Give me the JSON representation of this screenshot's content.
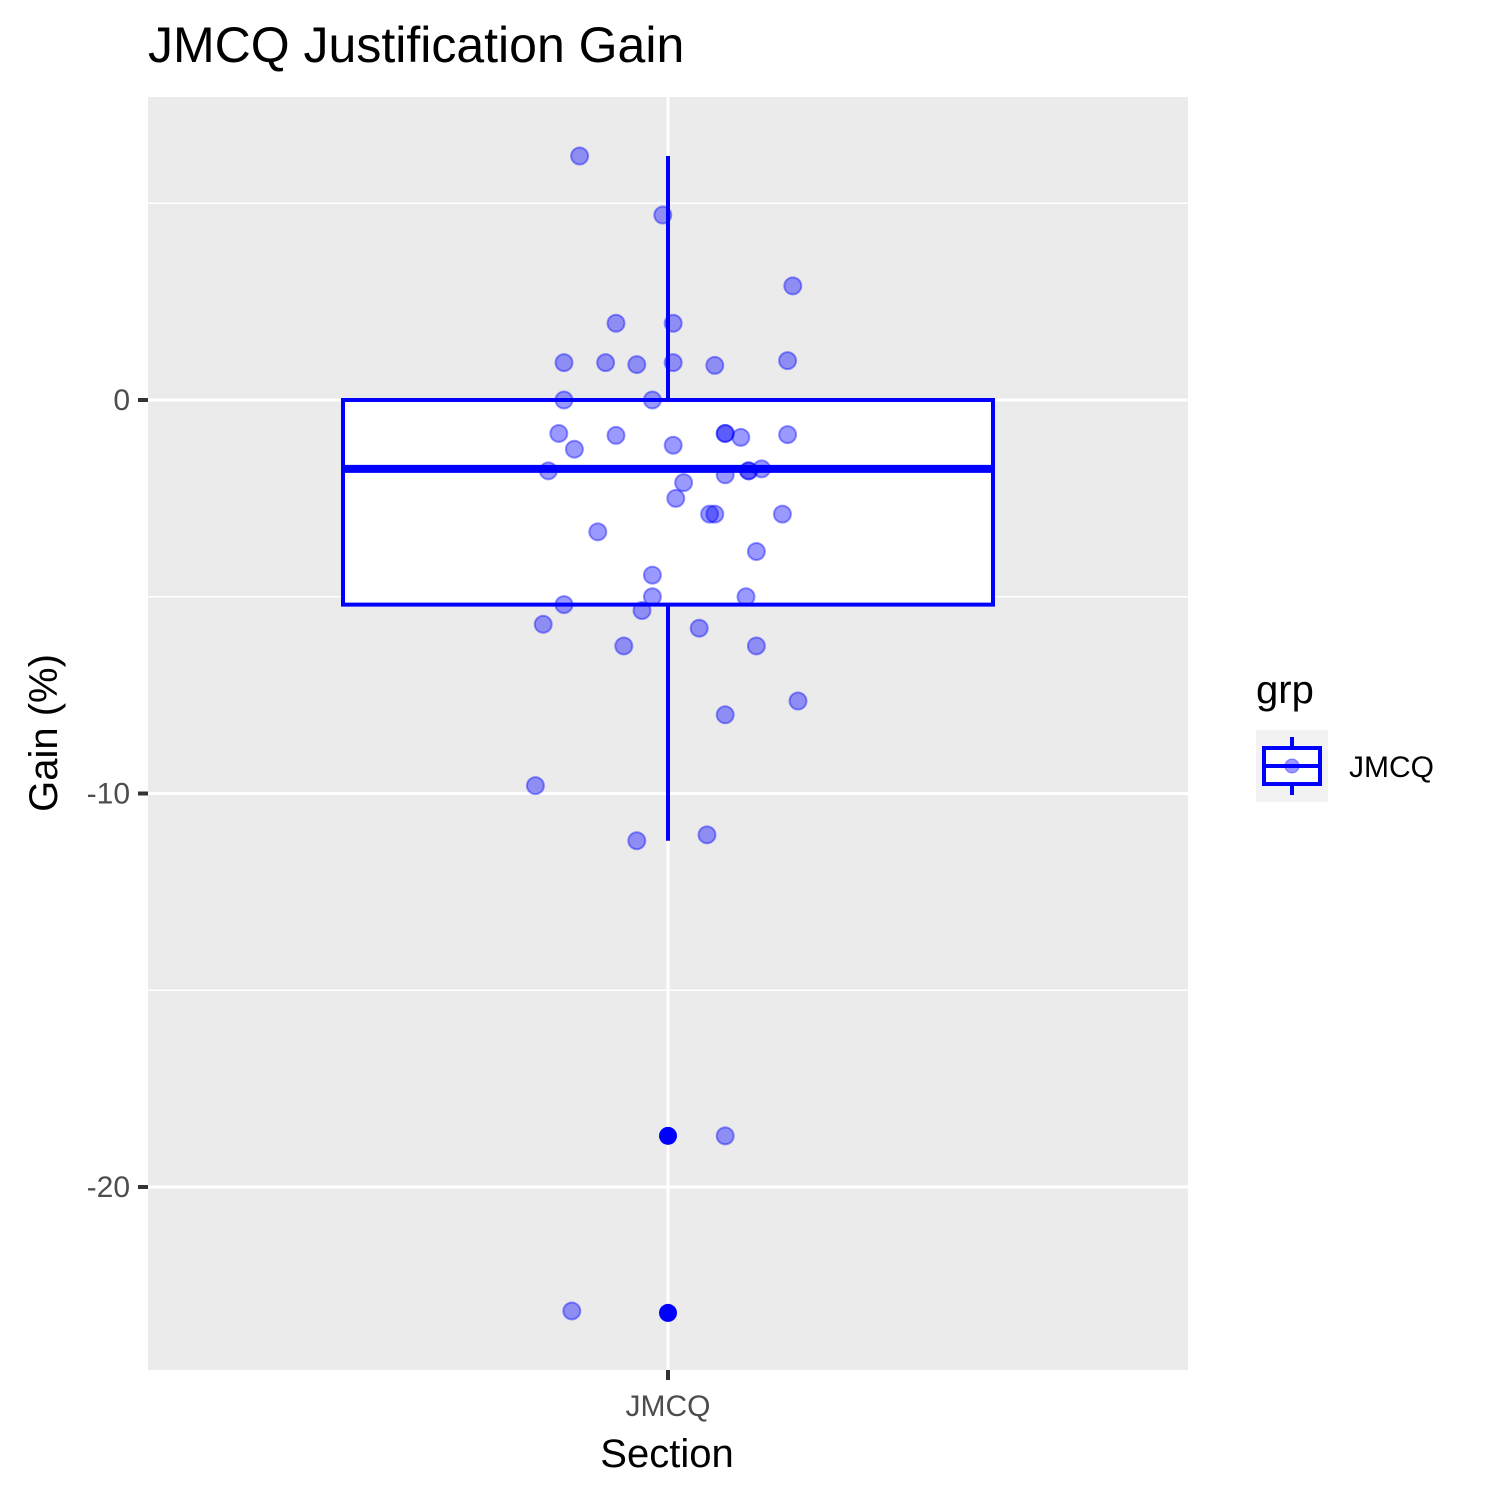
{
  "chart_data": {
    "type": "box",
    "title": "JMCQ Justification Gain",
    "xlabel": "Section",
    "ylabel": "Gain (%)",
    "categories": [
      "JMCQ"
    ],
    "ylim": [
      -24.3,
      8.1
    ],
    "yticks": [
      0,
      -10,
      -20
    ],
    "ytick_labels": [
      "0",
      "-10",
      "-20"
    ],
    "grid": true,
    "box": {
      "category": "JMCQ",
      "q1": -5.2,
      "median": -1.75,
      "q3": 0,
      "whisker_low": -11.2,
      "whisker_high": 6.2,
      "outliers": [
        -18.7,
        -23.2
      ]
    },
    "jitter_points": [
      {
        "x": -0.17,
        "y": 6.2
      },
      {
        "x": -0.01,
        "y": 4.7
      },
      {
        "x": 0.24,
        "y": 2.9
      },
      {
        "x": -0.1,
        "y": 1.95
      },
      {
        "x": 0.01,
        "y": 1.95
      },
      {
        "x": -0.2,
        "y": 0.95
      },
      {
        "x": -0.12,
        "y": 0.95
      },
      {
        "x": -0.06,
        "y": 0.9
      },
      {
        "x": 0.01,
        "y": 0.95
      },
      {
        "x": 0.09,
        "y": 0.88
      },
      {
        "x": 0.23,
        "y": 1.0
      },
      {
        "x": -0.2,
        "y": 0.0
      },
      {
        "x": -0.03,
        "y": 0.0
      },
      {
        "x": -0.21,
        "y": -0.85
      },
      {
        "x": -0.1,
        "y": -0.9
      },
      {
        "x": -0.18,
        "y": -1.25
      },
      {
        "x": 0.01,
        "y": -1.15
      },
      {
        "x": 0.11,
        "y": -0.85
      },
      {
        "x": 0.11,
        "y": -0.85
      },
      {
        "x": 0.14,
        "y": -0.95
      },
      {
        "x": 0.23,
        "y": -0.88
      },
      {
        "x": -0.23,
        "y": -1.8
      },
      {
        "x": 0.11,
        "y": -1.9
      },
      {
        "x": 0.155,
        "y": -1.8
      },
      {
        "x": 0.155,
        "y": -1.8
      },
      {
        "x": 0.18,
        "y": -1.75
      },
      {
        "x": 0.03,
        "y": -2.1
      },
      {
        "x": 0.015,
        "y": -2.5
      },
      {
        "x": 0.08,
        "y": -2.9
      },
      {
        "x": 0.09,
        "y": -2.9
      },
      {
        "x": 0.22,
        "y": -2.9
      },
      {
        "x": -0.135,
        "y": -3.35
      },
      {
        "x": 0.17,
        "y": -3.85
      },
      {
        "x": -0.03,
        "y": -4.45
      },
      {
        "x": -0.03,
        "y": -5.0
      },
      {
        "x": 0.15,
        "y": -5.0
      },
      {
        "x": -0.2,
        "y": -5.2
      },
      {
        "x": -0.05,
        "y": -5.35
      },
      {
        "x": -0.24,
        "y": -5.7
      },
      {
        "x": 0.06,
        "y": -5.8
      },
      {
        "x": -0.085,
        "y": -6.25
      },
      {
        "x": 0.17,
        "y": -6.25
      },
      {
        "x": 0.25,
        "y": -7.65
      },
      {
        "x": 0.11,
        "y": -8.0
      },
      {
        "x": -0.255,
        "y": -9.8
      },
      {
        "x": -0.06,
        "y": -11.2
      },
      {
        "x": 0.075,
        "y": -11.05
      },
      {
        "x": 0.11,
        "y": -18.7
      },
      {
        "x": -0.185,
        "y": -23.15
      }
    ],
    "legend": {
      "title": "grp",
      "entries": [
        "JMCQ"
      ],
      "placement": "right"
    },
    "colors": {
      "box_line": "#0000ff",
      "box_fill": "#ffffff",
      "point": "#0000ff",
      "panel": "#ebebeb",
      "grid": "#ffffff"
    }
  }
}
